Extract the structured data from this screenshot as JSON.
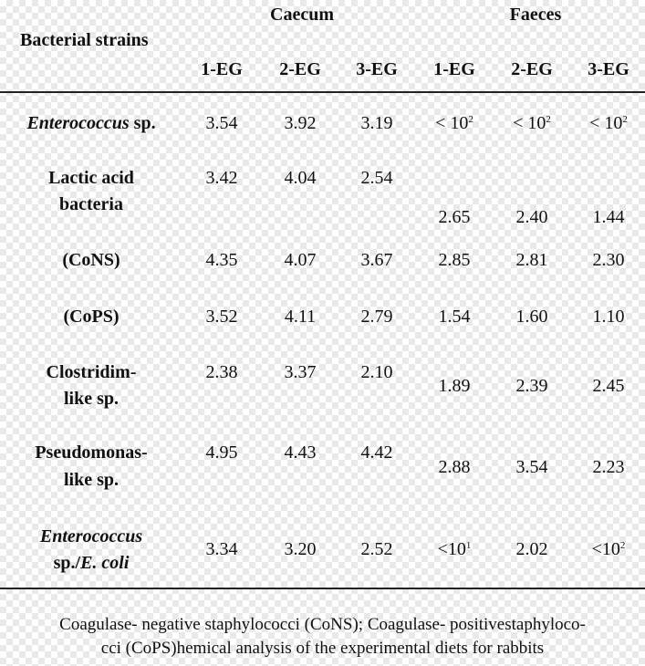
{
  "header": {
    "stub": "Bacterial strains",
    "groups": [
      "Caecum",
      "Faeces"
    ],
    "columns": [
      "1-EG",
      "2-EG",
      "3-EG",
      "1-EG",
      "2-EG",
      "3-EG"
    ]
  },
  "rows": [
    {
      "l1": "Enterococcus",
      "l1b": " sp.",
      "l2": "",
      "v": [
        "3.54",
        "3.92",
        "3.19",
        "< 10",
        "< 10",
        "< 10"
      ],
      "sup": [
        "",
        "",
        "",
        "2",
        "2",
        "2"
      ]
    },
    {
      "l1": "Lactic acid",
      "l1b": "",
      "l2": "bacteria",
      "v": [
        "3.42",
        "4.04",
        "2.54",
        "2.65",
        "2.40",
        "1.44"
      ],
      "sup": [
        "",
        "",
        "",
        "",
        "",
        ""
      ]
    },
    {
      "l1": "(CoNS)",
      "l1b": "",
      "l2": "",
      "v": [
        "4.35",
        "4.07",
        "3.67",
        "2.85",
        "2.81",
        "2.30"
      ],
      "sup": [
        "",
        "",
        "",
        "",
        "",
        ""
      ]
    },
    {
      "l1": "(CoPS)",
      "l1b": "",
      "l2": "",
      "v": [
        "3.52",
        "4.11",
        "2.79",
        "1.54",
        "1.60",
        "1.10"
      ],
      "sup": [
        "",
        "",
        "",
        "",
        "",
        ""
      ]
    },
    {
      "l1": "Clostridim-",
      "l1b": "",
      "l2": "like sp.",
      "v": [
        "2.38",
        "3.37",
        "2.10",
        "1.89",
        "2.39",
        "2.45"
      ],
      "sup": [
        "",
        "",
        "",
        "",
        "",
        ""
      ]
    },
    {
      "l1": "Pseudomonas-",
      "l1b": "",
      "l2": "like sp.",
      "v": [
        "4.95",
        "4.43",
        "4.42",
        "2.88",
        "3.54",
        "2.23"
      ],
      "sup": [
        "",
        "",
        "",
        "",
        "",
        ""
      ]
    },
    {
      "l1": "Enterococcus",
      "l1b": "",
      "l2": "sp./",
      "l2i": "E. coli",
      "v": [
        "3.34",
        "3.20",
        "2.52",
        "<10",
        "2.02",
        "<10"
      ],
      "sup": [
        "",
        "",
        "",
        "1",
        "",
        "2"
      ]
    }
  ],
  "caption": {
    "line1": "Coagulase- negative staphylococci (CoNS); Coagulase- positivestaphyloco-",
    "line2": "cci (CoPS)hemical analysis of the experimental diets for rabbits"
  }
}
